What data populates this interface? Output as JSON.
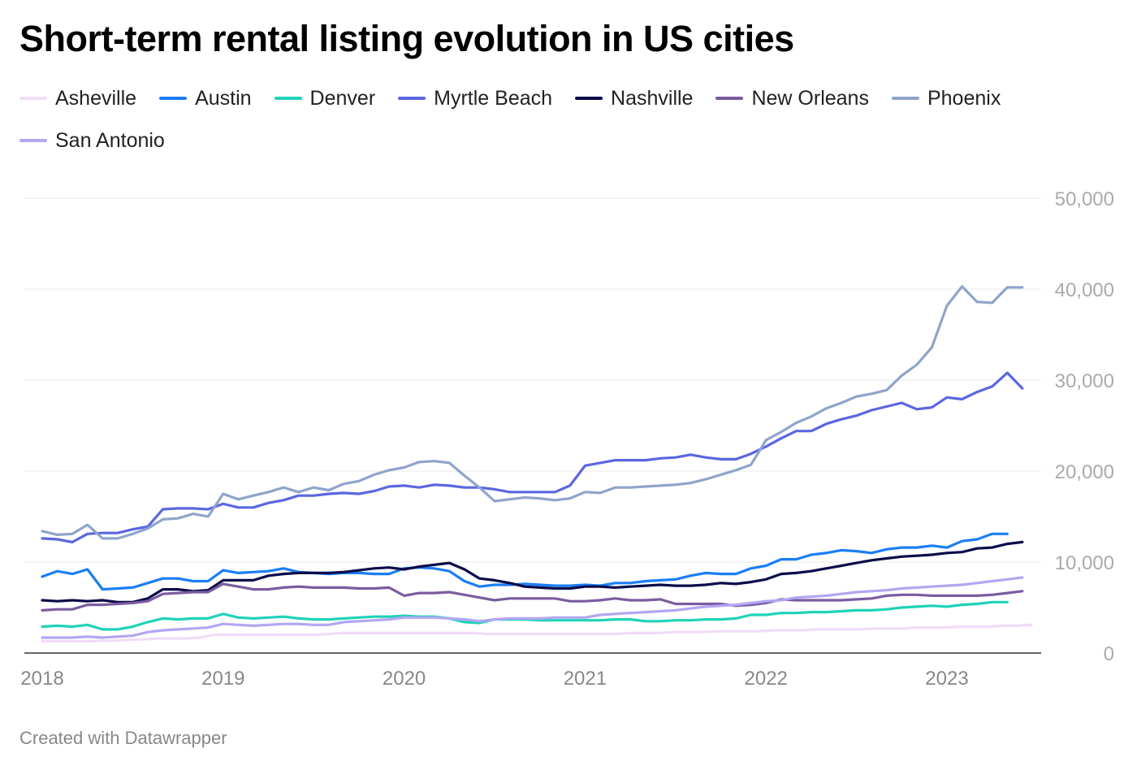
{
  "title": "Short-term rental listing evolution in US cities",
  "footer": "Created with Datawrapper",
  "chart_data": {
    "type": "line",
    "title": "Short-term rental listing evolution in US cities",
    "xlabel": "",
    "ylabel": "",
    "x_axis": {
      "start_year": 2018,
      "points_per_year": 12,
      "tick_labels": [
        "2018",
        "2019",
        "2020",
        "2021",
        "2022",
        "2023"
      ]
    },
    "ylim": [
      0,
      50000
    ],
    "y_ticks": [
      0,
      10000,
      20000,
      30000,
      40000,
      50000
    ],
    "y_tick_labels": [
      "0",
      "10,000",
      "20,000",
      "30,000",
      "40,000",
      "50,000"
    ],
    "grid": true,
    "legend_position": "top",
    "series": [
      {
        "name": "Asheville",
        "color": "#f1dcf7",
        "values": [
          1300,
          1300,
          1300,
          1300,
          1350,
          1350,
          1450,
          1500,
          1600,
          1600,
          1600,
          1700,
          2000,
          2000,
          2000,
          2000,
          2000,
          2000,
          2000,
          2000,
          2100,
          2200,
          2200,
          2200,
          2200,
          2200,
          2200,
          2200,
          2200,
          2200,
          2200,
          2100,
          2100,
          2100,
          2100,
          2100,
          2100,
          2100,
          2100,
          2100,
          2100,
          2200,
          2200,
          2200,
          2300,
          2300,
          2300,
          2400,
          2400,
          2400,
          2400,
          2500,
          2500,
          2500,
          2600,
          2600,
          2600,
          2600,
          2700,
          2700,
          2700,
          2800,
          2800,
          2800,
          2900,
          2900,
          2900,
          3000,
          3000,
          3100
        ]
      },
      {
        "name": "Austin",
        "color": "#1a7ef5",
        "values": [
          8400,
          9000,
          8700,
          9200,
          7000,
          7100,
          7200,
          7700,
          8200,
          8200,
          7900,
          7900,
          9100,
          8800,
          8900,
          9000,
          9300,
          8900,
          8800,
          8700,
          8800,
          8800,
          8700,
          8700,
          9300,
          9400,
          9300,
          9000,
          7900,
          7300,
          7500,
          7500,
          7600,
          7500,
          7400,
          7400,
          7500,
          7400,
          7700,
          7700,
          7900,
          8000,
          8100,
          8500,
          8800,
          8700,
          8700,
          9300,
          9600,
          10300,
          10300,
          10800,
          11000,
          11300,
          11200,
          11000,
          11400,
          11600,
          11600,
          11800,
          11600,
          12300,
          12500,
          13100,
          13100
        ]
      },
      {
        "name": "Denver",
        "color": "#1fd3b8",
        "values": [
          2900,
          3000,
          2900,
          3100,
          2600,
          2600,
          2900,
          3400,
          3800,
          3700,
          3800,
          3800,
          4300,
          3900,
          3800,
          3900,
          4000,
          3800,
          3700,
          3700,
          3800,
          3900,
          4000,
          4000,
          4100,
          4000,
          4000,
          3800,
          3400,
          3300,
          3700,
          3700,
          3700,
          3600,
          3600,
          3600,
          3600,
          3600,
          3700,
          3700,
          3500,
          3500,
          3600,
          3600,
          3700,
          3700,
          3800,
          4200,
          4200,
          4400,
          4400,
          4500,
          4500,
          4600,
          4700,
          4700,
          4800,
          5000,
          5100,
          5200,
          5100,
          5300,
          5400,
          5600,
          5600
        ]
      },
      {
        "name": "Myrtle Beach",
        "color": "#5b66e0",
        "values": [
          12600,
          12500,
          12200,
          13100,
          13200,
          13200,
          13600,
          13900,
          15800,
          15900,
          15900,
          15800,
          16400,
          16000,
          16000,
          16500,
          16800,
          17300,
          17300,
          17500,
          17600,
          17500,
          17800,
          18300,
          18400,
          18200,
          18500,
          18400,
          18200,
          18200,
          18000,
          17700,
          17700,
          17700,
          17700,
          18400,
          20600,
          20900,
          21200,
          21200,
          21200,
          21400,
          21500,
          21800,
          21500,
          21300,
          21300,
          21900,
          22700,
          23600,
          24400,
          24400,
          25200,
          25700,
          26100,
          26700,
          27100,
          27500,
          26800,
          27000,
          28100,
          27900,
          28700,
          29300,
          30800,
          29100
        ]
      },
      {
        "name": "Nashville",
        "color": "#0b0c4a",
        "values": [
          5800,
          5700,
          5800,
          5700,
          5800,
          5600,
          5600,
          6000,
          7000,
          7000,
          6800,
          6900,
          8000,
          8000,
          8000,
          8500,
          8700,
          8800,
          8800,
          8800,
          8900,
          9100,
          9300,
          9400,
          9200,
          9500,
          9700,
          9900,
          9200,
          8200,
          8000,
          7700,
          7300,
          7200,
          7100,
          7100,
          7300,
          7300,
          7200,
          7300,
          7400,
          7500,
          7400,
          7400,
          7500,
          7700,
          7600,
          7800,
          8100,
          8700,
          8800,
          9000,
          9300,
          9600,
          9900,
          10200,
          10400,
          10600,
          10700,
          10800,
          11000,
          11100,
          11500,
          11600,
          12000,
          12200
        ]
      },
      {
        "name": "New Orleans",
        "color": "#7a5c9f",
        "values": [
          4700,
          4800,
          4800,
          5300,
          5300,
          5400,
          5500,
          5700,
          6500,
          6600,
          6700,
          6700,
          7600,
          7300,
          7000,
          7000,
          7200,
          7300,
          7200,
          7200,
          7200,
          7100,
          7100,
          7200,
          6300,
          6600,
          6600,
          6700,
          6400,
          6100,
          5800,
          6000,
          6000,
          6000,
          6000,
          5700,
          5700,
          5800,
          6000,
          5800,
          5800,
          5900,
          5400,
          5400,
          5400,
          5400,
          5200,
          5300,
          5500,
          5900,
          5800,
          5800,
          5800,
          5800,
          5900,
          6000,
          6300,
          6400,
          6400,
          6300,
          6300,
          6300,
          6300,
          6400,
          6600,
          6800
        ]
      },
      {
        "name": "Phoenix",
        "color": "#8fa4cb",
        "values": [
          13400,
          13000,
          13100,
          14100,
          12600,
          12600,
          13100,
          13700,
          14700,
          14800,
          15300,
          15000,
          17500,
          16900,
          17300,
          17700,
          18200,
          17700,
          18200,
          17900,
          18600,
          18900,
          19600,
          20100,
          20400,
          21000,
          21100,
          20900,
          19500,
          18200,
          16700,
          16900,
          17100,
          17000,
          16800,
          17000,
          17700,
          17600,
          18200,
          18200,
          18300,
          18400,
          18500,
          18700,
          19100,
          19600,
          20100,
          20700,
          23400,
          24300,
          25300,
          26000,
          26900,
          27500,
          28200,
          28500,
          28900,
          30500,
          31700,
          33600,
          38200,
          40300,
          38600,
          38500,
          40200,
          40200
        ]
      },
      {
        "name": "San Antonio",
        "color": "#b3a6f2",
        "values": [
          1700,
          1700,
          1700,
          1800,
          1700,
          1800,
          1900,
          2300,
          2500,
          2600,
          2700,
          2800,
          3200,
          3100,
          3000,
          3100,
          3200,
          3200,
          3100,
          3100,
          3400,
          3500,
          3600,
          3700,
          3900,
          3900,
          3900,
          3800,
          3700,
          3500,
          3700,
          3800,
          3800,
          3800,
          3900,
          3900,
          3900,
          4200,
          4300,
          4400,
          4500,
          4600,
          4700,
          4900,
          5100,
          5200,
          5300,
          5500,
          5700,
          5800,
          6100,
          6200,
          6300,
          6500,
          6700,
          6800,
          6900,
          7100,
          7200,
          7300,
          7400,
          7500,
          7700,
          7900,
          8100,
          8300
        ]
      }
    ]
  }
}
